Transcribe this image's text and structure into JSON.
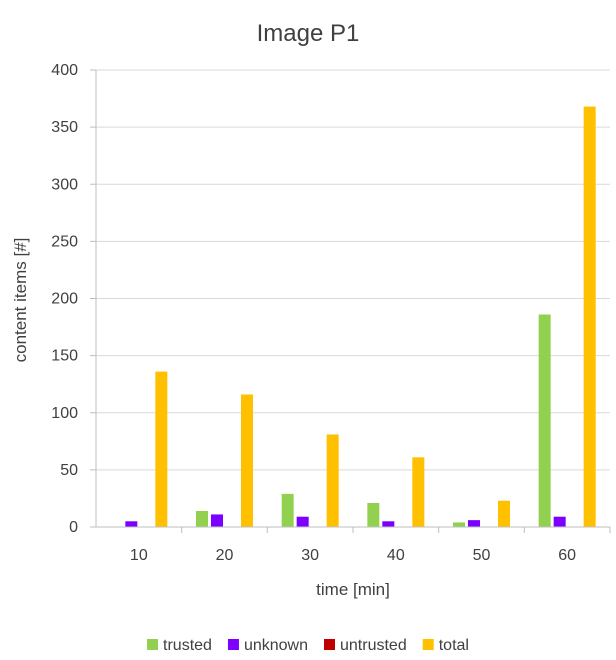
{
  "chart_data": {
    "type": "bar",
    "title": "Image P1",
    "xlabel": "time [min]",
    "ylabel": "content items [#]",
    "categories": [
      "10",
      "20",
      "30",
      "40",
      "50",
      "60"
    ],
    "yticks": [
      "0",
      "50",
      "100",
      "150",
      "200",
      "250",
      "300",
      "350",
      "400"
    ],
    "ylim": [
      0,
      400
    ],
    "grid": true,
    "legend_position": "bottom",
    "series": [
      {
        "name": "trusted",
        "color": "#92D050",
        "values": [
          0,
          14,
          29,
          21,
          4,
          186
        ]
      },
      {
        "name": "unknown",
        "color": "#7B00FF",
        "values": [
          5,
          11,
          9,
          5,
          6,
          9
        ]
      },
      {
        "name": "untrusted",
        "color": "#C00000",
        "values": [
          0,
          0,
          0,
          0,
          0,
          0
        ]
      },
      {
        "name": "total",
        "color": "#FFC000",
        "values": [
          136,
          116,
          81,
          61,
          23,
          368
        ]
      }
    ]
  }
}
